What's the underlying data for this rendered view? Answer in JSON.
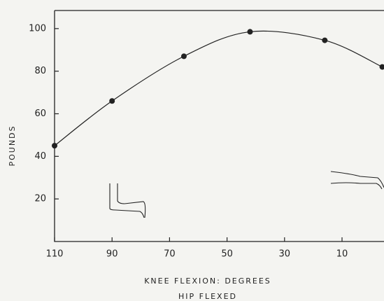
{
  "chart_data": {
    "type": "line",
    "xlabel_lines": [
      "KNEE FLEXION: DEGREES",
      "HIP FLEXED"
    ],
    "ylabel": "POUNDS",
    "x": [
      110,
      90,
      65,
      42,
      16,
      -4
    ],
    "series": [
      {
        "color": "#222222",
        "values": [
          45,
          66,
          87,
          98.5,
          94.5,
          82
        ]
      }
    ],
    "xlim": [
      110,
      -4.6
    ],
    "xticks": [
      110,
      90,
      70,
      50,
      30,
      10
    ],
    "ylim": [
      0,
      108.5
    ],
    "yticks": [
      20,
      40,
      60,
      80,
      100
    ]
  }
}
